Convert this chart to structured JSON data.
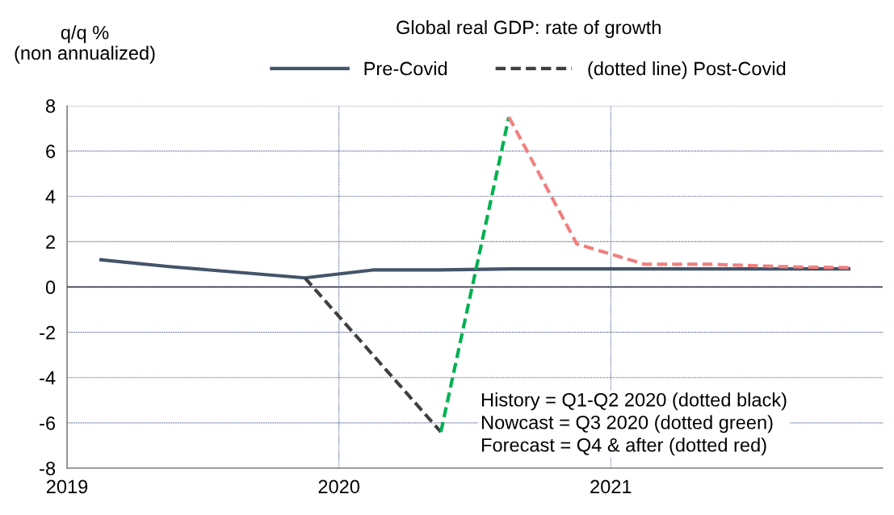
{
  "chart_data": {
    "type": "line",
    "title": "Global real GDP: rate of growth",
    "ylabel": "q/q % (non annualized)",
    "x": [
      2019.125,
      2019.375,
      2019.625,
      2019.875,
      2020.125,
      2020.375,
      2020.625,
      2020.875,
      2021.125,
      2021.375,
      2021.625,
      2021.875
    ],
    "series": [
      {
        "name": "Pre-Covid",
        "color": "#44546a",
        "line_style": "solid",
        "values": [
          1.2,
          0.9,
          0.65,
          0.4,
          0.75,
          0.75,
          0.8,
          0.8,
          0.8,
          0.8,
          0.8,
          0.8
        ]
      },
      {
        "name": "(dotted line) Post-Covid",
        "color": "#404040",
        "line_style": "dashed",
        "values": [
          null,
          null,
          null,
          0.4,
          -3.0,
          -6.4,
          null,
          null,
          null,
          null,
          null,
          null
        ]
      },
      {
        "color": "#00b050",
        "line_style": "dashed",
        "values": [
          null,
          null,
          null,
          null,
          null,
          -6.4,
          7.5,
          null,
          null,
          null,
          null,
          null
        ]
      },
      {
        "color": "#f08080",
        "line_style": "dashed",
        "values": [
          null,
          null,
          null,
          null,
          null,
          null,
          7.5,
          1.9,
          1.0,
          1.0,
          0.9,
          0.85
        ]
      }
    ],
    "xlim": [
      2019,
      2022
    ],
    "xticks": [
      2019,
      2020,
      2021
    ],
    "ylim": [
      -8,
      8
    ],
    "yticks": [
      -8,
      -6,
      -4,
      -2,
      0,
      2,
      4,
      6,
      8
    ],
    "ref_lines": [
      {
        "axis": "y",
        "value": 0,
        "color": "#000000"
      }
    ],
    "grid": true,
    "legend": "top",
    "marker": "none",
    "annotations": [
      "History = Q1-Q2 2020 (dotted black)",
      "Nowcast = Q3 2020 (dotted green)",
      "Forecast = Q4 & after (dotted red)"
    ]
  }
}
